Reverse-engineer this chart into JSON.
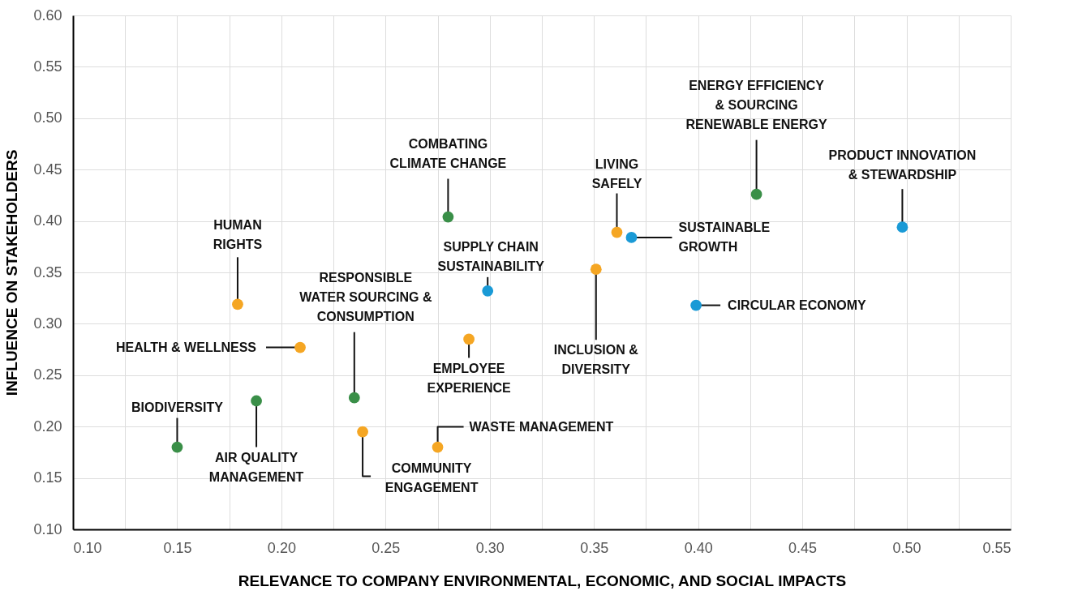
{
  "chart_data": {
    "type": "scatter",
    "xlabel": "RELEVANCE TO COMPANY ENVIRONMENTAL, ECONOMIC, AND SOCIAL IMPACTS",
    "ylabel": "INFLUENCE ON STAKEHOLDERS",
    "series": [
      {
        "color": "#3a8f48",
        "x": [
          0.15,
          0.188,
          0.235,
          0.28,
          0.428
        ],
        "values": [
          0.18,
          0.225,
          0.228,
          0.404,
          0.426
        ]
      },
      {
        "color": "#f5a623",
        "x": [
          0.179,
          0.209,
          0.239,
          0.275,
          0.29,
          0.351,
          0.361
        ],
        "values": [
          0.319,
          0.277,
          0.195,
          0.18,
          0.285,
          0.353,
          0.389
        ]
      },
      {
        "color": "#1a9ad6",
        "x": [
          0.299,
          0.368,
          0.399,
          0.498
        ],
        "values": [
          0.332,
          0.384,
          0.318,
          0.394
        ]
      }
    ],
    "annotations": [
      {
        "text": "BIODIVERSITY",
        "x": 0.15,
        "y": 0.18
      },
      {
        "text": "AIR QUALITY\nMANAGEMENT",
        "x": 0.188,
        "y": 0.225
      },
      {
        "text": "HUMAN\nRIGHTS",
        "x": 0.179,
        "y": 0.319
      },
      {
        "text": "HEALTH & WELLNESS",
        "x": 0.209,
        "y": 0.277
      },
      {
        "text": "RESPONSIBLE\nWATER SOURCING &\nCONSUMPTION",
        "x": 0.235,
        "y": 0.228
      },
      {
        "text": "COMMUNITY\nENGAGEMENT",
        "x": 0.239,
        "y": 0.195
      },
      {
        "text": "COMBATING\nCLIMATE CHANGE",
        "x": 0.28,
        "y": 0.404
      },
      {
        "text": "WASTE MANAGEMENT",
        "x": 0.275,
        "y": 0.18
      },
      {
        "text": "EMPLOYEE\nEXPERIENCE",
        "x": 0.29,
        "y": 0.285
      },
      {
        "text": "SUPPLY CHAIN\nSUSTAINABILITY",
        "x": 0.299,
        "y": 0.332
      },
      {
        "text": "INCLUSION &\nDIVERSITY",
        "x": 0.351,
        "y": 0.353
      },
      {
        "text": "LIVING\nSAFELY",
        "x": 0.361,
        "y": 0.389
      },
      {
        "text": "SUSTAINABLE\nGROWTH",
        "x": 0.368,
        "y": 0.384
      },
      {
        "text": "CIRCULAR ECONOMY",
        "x": 0.399,
        "y": 0.318
      },
      {
        "text": "ENERGY EFFICIENCY\n& SOURCING\nRENEWABLE ENERGY",
        "x": 0.428,
        "y": 0.426
      },
      {
        "text": "PRODUCT INNOVATION\n& STEWARDSHIP",
        "x": 0.498,
        "y": 0.394
      }
    ],
    "xlim": [
      0.1,
      0.55
    ],
    "ylim": [
      0.1,
      0.6
    ],
    "xticks": [
      {
        "value": 0.1,
        "label": "0.10"
      },
      {
        "value": 0.125,
        "label": null
      },
      {
        "value": 0.15,
        "label": "0.15"
      },
      {
        "value": 0.175,
        "label": null
      },
      {
        "value": 0.2,
        "label": "0.20"
      },
      {
        "value": 0.225,
        "label": null
      },
      {
        "value": 0.25,
        "label": "0.25"
      },
      {
        "value": 0.275,
        "label": null
      },
      {
        "value": 0.3,
        "label": "0.30"
      },
      {
        "value": 0.325,
        "label": null
      },
      {
        "value": 0.35,
        "label": "0.35"
      },
      {
        "value": 0.375,
        "label": null
      },
      {
        "value": 0.4,
        "label": "0.40"
      },
      {
        "value": 0.425,
        "label": null
      },
      {
        "value": 0.45,
        "label": "0.45"
      },
      {
        "value": 0.475,
        "label": null
      },
      {
        "value": 0.5,
        "label": "0.50"
      },
      {
        "value": 0.525,
        "label": null
      },
      {
        "value": 0.55,
        "label": "0.55"
      }
    ],
    "yticks": [
      {
        "value": 0.1,
        "label": "0.10"
      },
      {
        "value": 0.15,
        "label": "0.15"
      },
      {
        "value": 0.2,
        "label": "0.20"
      },
      {
        "value": 0.25,
        "label": "0.25"
      },
      {
        "value": 0.3,
        "label": "0.30"
      },
      {
        "value": 0.35,
        "label": "0.35"
      },
      {
        "value": 0.4,
        "label": "0.40"
      },
      {
        "value": 0.45,
        "label": "0.45"
      },
      {
        "value": 0.5,
        "label": "0.50"
      },
      {
        "value": 0.55,
        "label": "0.55"
      },
      {
        "value": 0.6,
        "label": "0.60"
      }
    ],
    "grid": true,
    "legend": false,
    "marker": "circle"
  }
}
